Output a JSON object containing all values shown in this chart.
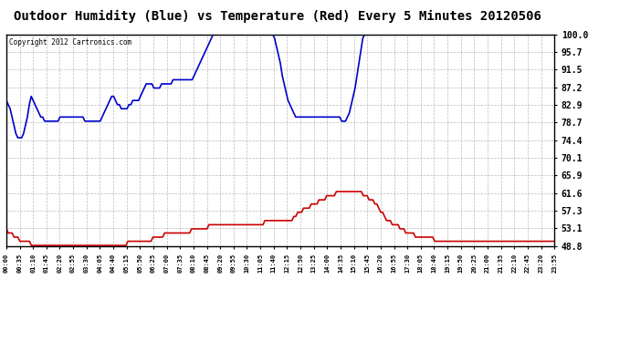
{
  "title": "Outdoor Humidity (Blue) vs Temperature (Red) Every 5 Minutes 20120506",
  "copyright": "Copyright 2012 Cartronics.com",
  "background_color": "#ffffff",
  "plot_bg_color": "#ffffff",
  "grid_color": "#aaaaaa",
  "title_fontsize": 10,
  "ytick_labels": [
    100.0,
    95.7,
    91.5,
    87.2,
    82.9,
    78.7,
    74.4,
    70.1,
    65.9,
    61.6,
    57.3,
    53.1,
    48.8
  ],
  "ymin": 48.8,
  "ymax": 100.0,
  "xtick_labels": [
    "00:00",
    "00:35",
    "01:10",
    "01:45",
    "02:20",
    "02:55",
    "03:30",
    "04:05",
    "04:40",
    "05:15",
    "05:50",
    "06:25",
    "07:00",
    "07:35",
    "08:10",
    "08:45",
    "09:20",
    "09:55",
    "10:30",
    "11:05",
    "11:40",
    "12:15",
    "12:50",
    "13:25",
    "14:00",
    "14:35",
    "15:10",
    "15:45",
    "16:20",
    "16:55",
    "17:30",
    "18:05",
    "18:40",
    "19:15",
    "19:50",
    "20:25",
    "21:00",
    "21:35",
    "22:10",
    "22:45",
    "23:20",
    "23:55"
  ],
  "humidity_color": "#0000cc",
  "temp_color": "#cc0000",
  "line_width": 1.2,
  "humidity_data": [
    84,
    83,
    82,
    80,
    78,
    76,
    75,
    75,
    75,
    76,
    78,
    80,
    83,
    85,
    84,
    83,
    82,
    81,
    80,
    80,
    79,
    79,
    79,
    79,
    79,
    79,
    79,
    79,
    80,
    80,
    80,
    80,
    80,
    80,
    80,
    80,
    80,
    80,
    80,
    80,
    80,
    79,
    79,
    79,
    79,
    79,
    79,
    79,
    79,
    79,
    80,
    81,
    82,
    83,
    84,
    85,
    85,
    84,
    83,
    83,
    82,
    82,
    82,
    82,
    83,
    83,
    84,
    84,
    84,
    84,
    85,
    86,
    87,
    88,
    88,
    88,
    88,
    87,
    87,
    87,
    87,
    88,
    88,
    88,
    88,
    88,
    88,
    89,
    89,
    89,
    89,
    89,
    89,
    89,
    89,
    89,
    89,
    89,
    90,
    91,
    92,
    93,
    94,
    95,
    96,
    97,
    98,
    99,
    100,
    100,
    100,
    100,
    100,
    100,
    100,
    100,
    100,
    100,
    100,
    100,
    100,
    100,
    100,
    100,
    100,
    100,
    100,
    100,
    100,
    100,
    100,
    100,
    100,
    100,
    100,
    100,
    100,
    100,
    100,
    100,
    99,
    97,
    95,
    93,
    90,
    88,
    86,
    84,
    83,
    82,
    81,
    80,
    80,
    80,
    80,
    80,
    80,
    80,
    80,
    80,
    80,
    80,
    80,
    80,
    80,
    80,
    80,
    80,
    80,
    80,
    80,
    80,
    80,
    80,
    80,
    79,
    79,
    79,
    80,
    81,
    83,
    85,
    87,
    90,
    93,
    96,
    99,
    100,
    100,
    100,
    100,
    100,
    100,
    100,
    100,
    100,
    100,
    100,
    100,
    100,
    100,
    100,
    100,
    100,
    100,
    100,
    100,
    100,
    100,
    100,
    100,
    100,
    100,
    100,
    100,
    100,
    100,
    100,
    100,
    100,
    100,
    100,
    100,
    100,
    100,
    100,
    100,
    100,
    100,
    100,
    100,
    100,
    100,
    100,
    100,
    100,
    100,
    100,
    100,
    100,
    100,
    100,
    100,
    100,
    100,
    100,
    100,
    100,
    100,
    100,
    100,
    100,
    100,
    100,
    100,
    100,
    100,
    100,
    100,
    100,
    100,
    100,
    100,
    100,
    100,
    100,
    100,
    100,
    100,
    100,
    100,
    100,
    100,
    100,
    100,
    100,
    100,
    100,
    100,
    100,
    100,
    100,
    100,
    100,
    100,
    100,
    100
  ],
  "temp_data": [
    53,
    52,
    52,
    52,
    51,
    51,
    51,
    50,
    50,
    50,
    50,
    50,
    50,
    49,
    49,
    49,
    49,
    49,
    49,
    49,
    49,
    49,
    49,
    49,
    49,
    49,
    49,
    49,
    49,
    49,
    49,
    49,
    49,
    49,
    49,
    49,
    49,
    49,
    49,
    49,
    49,
    49,
    49,
    49,
    49,
    49,
    49,
    49,
    49,
    49,
    49,
    49,
    49,
    49,
    49,
    49,
    49,
    49,
    49,
    49,
    49,
    49,
    49,
    50,
    50,
    50,
    50,
    50,
    50,
    50,
    50,
    50,
    50,
    50,
    50,
    50,
    51,
    51,
    51,
    51,
    51,
    51,
    52,
    52,
    52,
    52,
    52,
    52,
    52,
    52,
    52,
    52,
    52,
    52,
    52,
    52,
    53,
    53,
    53,
    53,
    53,
    53,
    53,
    53,
    53,
    54,
    54,
    54,
    54,
    54,
    54,
    54,
    54,
    54,
    54,
    54,
    54,
    54,
    54,
    54,
    54,
    54,
    54,
    54,
    54,
    54,
    54,
    54,
    54,
    54,
    54,
    54,
    54,
    54,
    55,
    55,
    55,
    55,
    55,
    55,
    55,
    55,
    55,
    55,
    55,
    55,
    55,
    55,
    55,
    56,
    56,
    57,
    57,
    57,
    58,
    58,
    58,
    58,
    59,
    59,
    59,
    59,
    60,
    60,
    60,
    60,
    61,
    61,
    61,
    61,
    61,
    62,
    62,
    62,
    62,
    62,
    62,
    62,
    62,
    62,
    62,
    62,
    62,
    62,
    62,
    61,
    61,
    61,
    60,
    60,
    60,
    59,
    59,
    58,
    57,
    57,
    56,
    55,
    55,
    55,
    54,
    54,
    54,
    54,
    53,
    53,
    53,
    52,
    52,
    52,
    52,
    52,
    51,
    51,
    51,
    51,
    51,
    51,
    51,
    51,
    51,
    51,
    50,
    50,
    50,
    50,
    50,
    50,
    50,
    50,
    50,
    50,
    50,
    50,
    50,
    50,
    50,
    50,
    50,
    50,
    50,
    50,
    50,
    50,
    50,
    50,
    50,
    50,
    50,
    50,
    50,
    50,
    50,
    50,
    50,
    50,
    50,
    50,
    50,
    50,
    50,
    50,
    50,
    50,
    50,
    50,
    50,
    50,
    50,
    50,
    50,
    50,
    50,
    50,
    50,
    50,
    50,
    50,
    50,
    50,
    50,
    50,
    50,
    50,
    50
  ]
}
